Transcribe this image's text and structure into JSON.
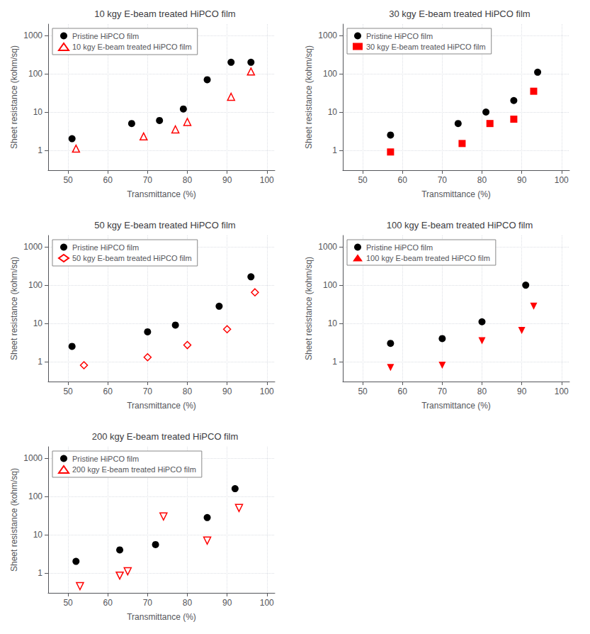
{
  "chart_data": [
    {
      "type": "scatter",
      "title": "10 kgy E-beam treated HiPCO film",
      "xlabel": "Transmittance (%)",
      "ylabel": "Sheet resistance (kohm/sq)",
      "log": "y",
      "grid": true,
      "legend": "upper left",
      "xlim": [
        45,
        102
      ],
      "xticks": [
        50,
        60,
        70,
        80,
        90,
        100
      ],
      "ylim": [
        0.3,
        2000
      ],
      "yticks": [
        1,
        10,
        100,
        1000
      ],
      "series": [
        {
          "name": "Pristine HiPCO film",
          "color": "#000000",
          "marker": "circle",
          "x": [
            51,
            66,
            73,
            79,
            85,
            91,
            96
          ],
          "values": [
            2.0,
            5.0,
            6.0,
            12.0,
            70.0,
            200.0,
            200.0
          ]
        },
        {
          "name": "10 kgy E-beam treated HiPCO film",
          "color": "#ff0000",
          "marker": "triangle-up-open",
          "x": [
            52,
            69,
            77,
            80,
            91,
            96
          ],
          "values": [
            1.1,
            2.3,
            3.5,
            5.5,
            25.0,
            115.0
          ]
        }
      ]
    },
    {
      "type": "scatter",
      "title": "30 kgy E-beam treated HiPCO film",
      "xlabel": "Transmittance (%)",
      "ylabel": "Sheet resistance (kohm/sq)",
      "log": "y",
      "grid": true,
      "legend": "upper left",
      "xlim": [
        45,
        102
      ],
      "xticks": [
        50,
        60,
        70,
        80,
        90,
        100
      ],
      "ylim": [
        0.3,
        2000
      ],
      "yticks": [
        1,
        10,
        100,
        1000
      ],
      "series": [
        {
          "name": "Pristine HiPCO film",
          "color": "#000000",
          "marker": "circle",
          "x": [
            57,
            74,
            81,
            88,
            94
          ],
          "values": [
            2.5,
            5.0,
            10.0,
            20.0,
            110.0
          ]
        },
        {
          "name": "30 kgy E-beam treated HiPCO film",
          "color": "#ff0000",
          "marker": "square",
          "x": [
            57,
            75,
            82,
            88,
            93
          ],
          "values": [
            0.9,
            1.5,
            5.0,
            6.5,
            35.0
          ]
        }
      ]
    },
    {
      "type": "scatter",
      "title": "50 kgy E-beam treated HiPCO film",
      "xlabel": "Transmittance (%)",
      "ylabel": "Sheet resistance (kohm/sq)",
      "log": "y",
      "grid": true,
      "legend": "upper left",
      "xlim": [
        45,
        102
      ],
      "xticks": [
        50,
        60,
        70,
        80,
        90,
        100
      ],
      "ylim": [
        0.3,
        2000
      ],
      "yticks": [
        1,
        10,
        100,
        1000
      ],
      "series": [
        {
          "name": "Pristine HiPCO film",
          "color": "#000000",
          "marker": "circle",
          "x": [
            51,
            70,
            77,
            88,
            96
          ],
          "values": [
            2.5,
            6.0,
            9.0,
            28.0,
            165.0
          ]
        },
        {
          "name": "50 kgy E-beam treated HiPCO film",
          "color": "#ff0000",
          "marker": "diamond-open",
          "x": [
            54,
            70,
            80,
            90,
            97
          ],
          "values": [
            0.8,
            1.3,
            2.7,
            7.0,
            65.0
          ]
        }
      ]
    },
    {
      "type": "scatter",
      "title": "100 kgy E-beam treated HiPCO film",
      "xlabel": "Transmittance (%)",
      "ylabel": "Sheet resistance (kohm/sq)",
      "log": "y",
      "grid": true,
      "legend": "upper left",
      "xlim": [
        45,
        102
      ],
      "xticks": [
        50,
        60,
        70,
        80,
        90,
        100
      ],
      "ylim": [
        0.3,
        2000
      ],
      "yticks": [
        1,
        10,
        100,
        1000
      ],
      "series": [
        {
          "name": "Pristine HiPCO film",
          "color": "#000000",
          "marker": "circle",
          "x": [
            57,
            70,
            80,
            91
          ],
          "values": [
            3.0,
            4.0,
            11.0,
            100.0
          ]
        },
        {
          "name": "100 kgy E-beam treated HiPCO film",
          "color": "#ff0000",
          "marker": "triangle-down",
          "x": [
            57,
            70,
            80,
            90,
            93
          ],
          "values": [
            0.7,
            0.8,
            3.5,
            6.5,
            28.0
          ]
        }
      ]
    },
    {
      "type": "scatter",
      "title": "200 kgy E-beam treated HiPCO film",
      "xlabel": "Transmittance (%)",
      "ylabel": "Sheet resistance (kohm/sq)",
      "log": "y",
      "grid": true,
      "legend": "upper left",
      "xlim": [
        45,
        102
      ],
      "xticks": [
        50,
        60,
        70,
        80,
        90,
        100
      ],
      "ylim": [
        0.3,
        2000
      ],
      "yticks": [
        1,
        10,
        100,
        1000
      ],
      "series": [
        {
          "name": "Pristine HiPCO film",
          "color": "#000000",
          "marker": "circle",
          "x": [
            52,
            63,
            72,
            85,
            92
          ],
          "values": [
            2.0,
            4.0,
            5.5,
            28.0,
            160.0
          ]
        },
        {
          "name": "200 kgy E-beam treated HiPCO film",
          "color": "#ff0000",
          "marker": "triangle-down-open",
          "x": [
            53,
            63,
            65,
            74,
            85,
            93
          ],
          "values": [
            0.45,
            0.85,
            1.1,
            30.0,
            7.0,
            50.0
          ]
        }
      ]
    }
  ]
}
